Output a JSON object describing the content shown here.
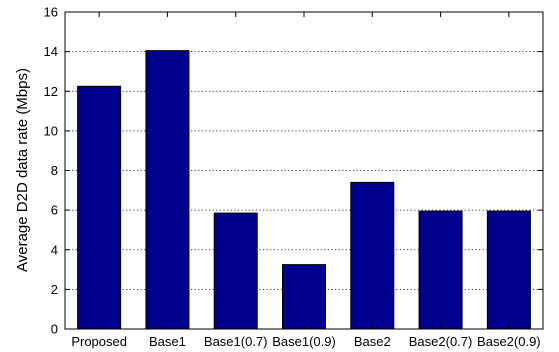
{
  "colors": {
    "bar_fill": "#00008f",
    "bar_stroke": "#000000"
  },
  "chart_data": {
    "type": "bar",
    "title": "",
    "xlabel": "",
    "ylabel": "Average D2D data rate (Mbps)",
    "ylim": [
      0,
      16
    ],
    "yticks": [
      0,
      2,
      4,
      6,
      8,
      10,
      12,
      14,
      16
    ],
    "grid": "horizontal-dotted",
    "categories": [
      "Proposed",
      "Base1",
      "Base1(0.7)",
      "Base1(0.9)",
      "Base2",
      "Base2(0.7)",
      "Base2(0.9)"
    ],
    "values": [
      12.25,
      14.05,
      5.85,
      3.25,
      7.4,
      5.95,
      5.95
    ]
  }
}
